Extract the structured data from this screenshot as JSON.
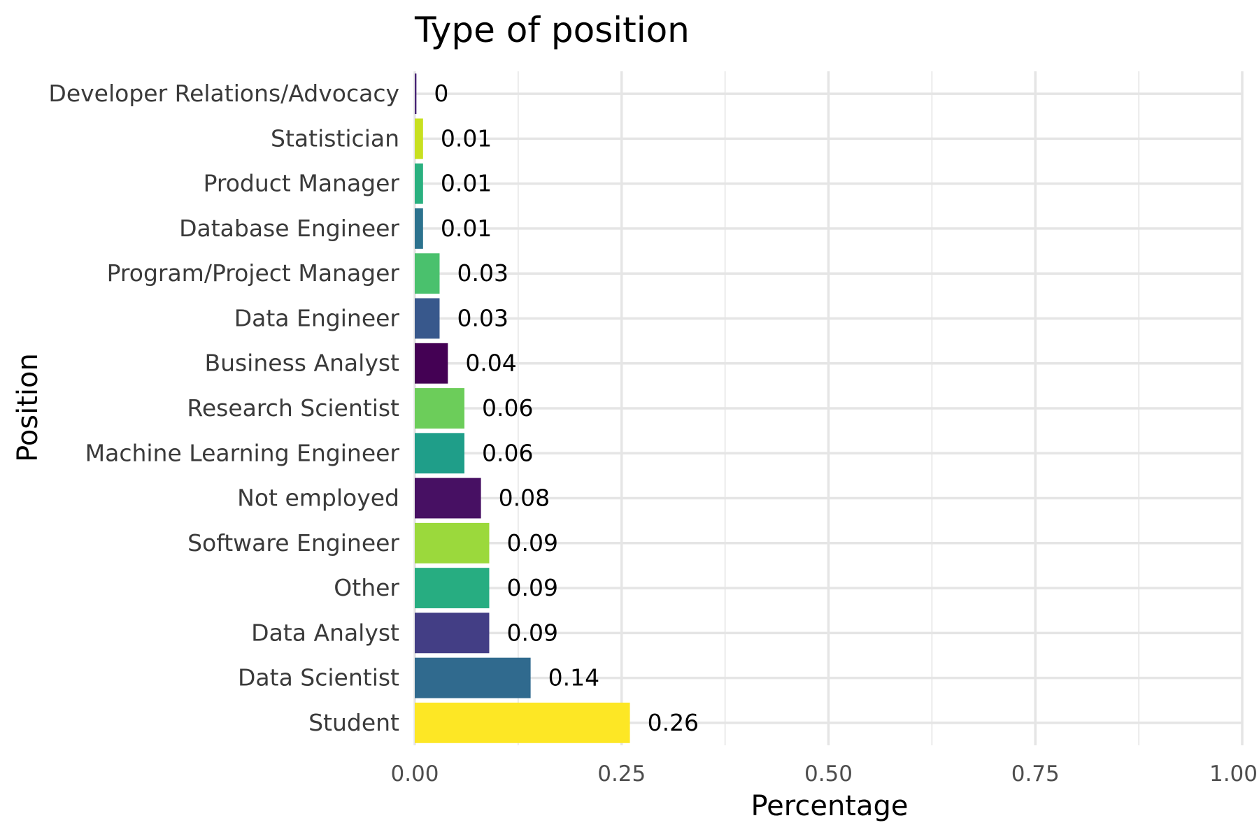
{
  "chart_data": {
    "type": "bar",
    "orientation": "horizontal",
    "title": "Type of position",
    "xlabel": "Percentage",
    "ylabel": "Position",
    "xlim": [
      0,
      1
    ],
    "xticks": [
      0,
      0.25,
      0.5,
      0.75,
      1
    ],
    "xtick_labels": [
      "0.00",
      "0.25",
      "0.50",
      "0.75",
      "1.00"
    ],
    "grid": true,
    "legend": "none",
    "categories": [
      "Developer Relations/Advocacy",
      "Statistician",
      "Product Manager",
      "Database Engineer",
      "Program/Project Manager",
      "Data Engineer",
      "Business Analyst",
      "Research Scientist",
      "Machine Learning Engineer",
      "Not employed",
      "Software Engineer",
      "Other",
      "Data Analyst",
      "Data Scientist",
      "Student"
    ],
    "values": [
      0.002,
      0.01,
      0.01,
      0.01,
      0.03,
      0.03,
      0.04,
      0.06,
      0.06,
      0.08,
      0.09,
      0.09,
      0.09,
      0.14,
      0.26
    ],
    "value_labels": [
      "0",
      "0.01",
      "0.01",
      "0.01",
      "0.03",
      "0.03",
      "0.04",
      "0.06",
      "0.06",
      "0.08",
      "0.09",
      "0.09",
      "0.09",
      "0.14",
      "0.26"
    ],
    "colors": [
      "#482475",
      "#c8e020",
      "#2ab07f",
      "#2c728e",
      "#4ac16d",
      "#38588c",
      "#440154",
      "#6ccd5a",
      "#1f9e89",
      "#471063",
      "#9bd93c",
      "#27ad81",
      "#433e85",
      "#306a8e",
      "#fde725"
    ]
  }
}
